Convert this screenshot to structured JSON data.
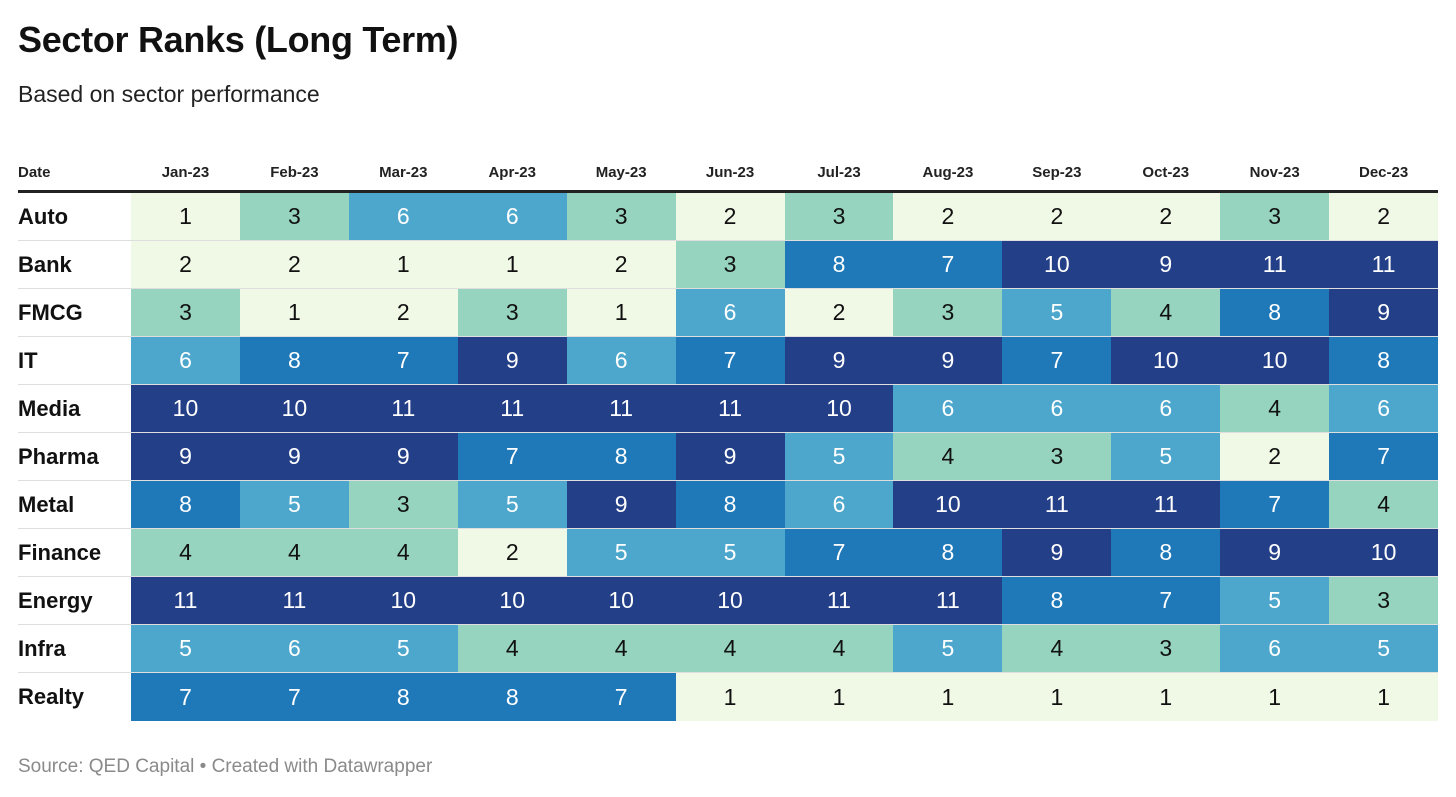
{
  "title": "Sector Ranks (Long Term)",
  "subtitle": "Based on sector performance",
  "source": "Source: QED Capital • Created with Datawrapper",
  "chart_data": {
    "type": "heatmap",
    "title": "Sector Ranks (Long Term)",
    "subtitle": "Based on sector performance",
    "row_header": "Date",
    "columns": [
      "Jan-23",
      "Feb-23",
      "Mar-23",
      "Apr-23",
      "May-23",
      "Jun-23",
      "Jul-23",
      "Aug-23",
      "Sep-23",
      "Oct-23",
      "Nov-23",
      "Dec-23"
    ],
    "rows": [
      {
        "name": "Auto",
        "values": [
          1,
          3,
          6,
          6,
          3,
          2,
          3,
          2,
          2,
          2,
          3,
          2
        ]
      },
      {
        "name": "Bank",
        "values": [
          2,
          2,
          1,
          1,
          2,
          3,
          8,
          7,
          10,
          9,
          11,
          11
        ]
      },
      {
        "name": "FMCG",
        "values": [
          3,
          1,
          2,
          3,
          1,
          6,
          2,
          3,
          5,
          4,
          8,
          9
        ]
      },
      {
        "name": "IT",
        "values": [
          6,
          8,
          7,
          9,
          6,
          7,
          9,
          9,
          7,
          10,
          10,
          8
        ]
      },
      {
        "name": "Media",
        "values": [
          10,
          10,
          11,
          11,
          11,
          11,
          10,
          6,
          6,
          6,
          4,
          6
        ]
      },
      {
        "name": "Pharma",
        "values": [
          9,
          9,
          9,
          7,
          8,
          9,
          5,
          4,
          3,
          5,
          2,
          7
        ]
      },
      {
        "name": "Metal",
        "values": [
          8,
          5,
          3,
          5,
          9,
          8,
          6,
          10,
          11,
          11,
          7,
          4
        ]
      },
      {
        "name": "Finance",
        "values": [
          4,
          4,
          4,
          2,
          5,
          5,
          7,
          8,
          9,
          8,
          9,
          10
        ]
      },
      {
        "name": "Energy",
        "values": [
          11,
          11,
          10,
          10,
          10,
          10,
          11,
          11,
          8,
          7,
          5,
          3
        ]
      },
      {
        "name": "Infra",
        "values": [
          5,
          6,
          5,
          4,
          4,
          4,
          4,
          5,
          4,
          3,
          6,
          5
        ]
      },
      {
        "name": "Realty",
        "values": [
          7,
          7,
          8,
          8,
          7,
          1,
          1,
          1,
          1,
          1,
          1,
          1
        ]
      }
    ],
    "color_scale": {
      "1": "#f0f8e6",
      "2": "#f0f8e6",
      "3": "#96d4c0",
      "4": "#96d4c0",
      "5": "#4da7cd",
      "6": "#4da7cd",
      "7": "#1f78b8",
      "8": "#1f78b8",
      "9": "#233f87",
      "10": "#233f87",
      "11": "#233f87"
    },
    "text_colors": {
      "light": "#111111",
      "dark": "#ffffff"
    }
  }
}
